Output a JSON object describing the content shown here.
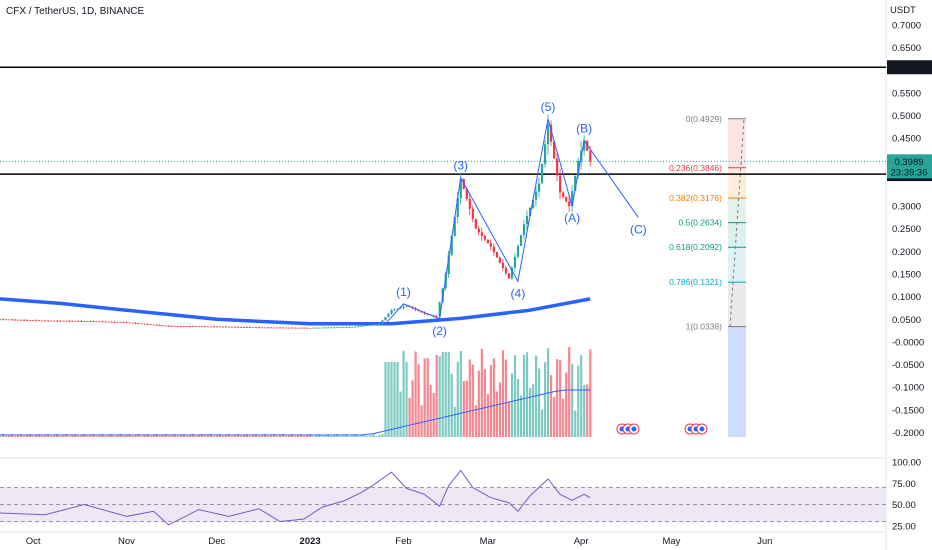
{
  "symbol_line": "CFX / TetherUS, 1D, BINANCE",
  "chart_data": {
    "type": "candlestick",
    "title": "CFX / TetherUS, 1D, BINANCE",
    "price_axis": {
      "currency_label": "USDT",
      "ticks": [
        "0.7000",
        "0.6500",
        "0.5500",
        "0.5000",
        "0.4500",
        "0.3000",
        "0.2500",
        "0.2000",
        "0.1500",
        "0.1000",
        "0.0500",
        "-0.0000",
        "-0.0500",
        "-0.1000",
        "-0.1500",
        "-0.2000"
      ],
      "ylim": [
        -0.21,
        0.73
      ]
    },
    "time_axis": {
      "labels": [
        "Oct",
        "Nov",
        "Dec",
        "2023",
        "Feb",
        "Mar",
        "Apr",
        "May",
        "Jun"
      ]
    },
    "horizontal_levels": [
      {
        "label": "0.6067",
        "value": 0.6067,
        "color": "#000000"
      },
      {
        "label": "0.3707",
        "value": 0.3707,
        "color": "#000000"
      }
    ],
    "last_price": {
      "value": 0.3989,
      "label": "0.3989",
      "countdown": "23:39:36",
      "color": "#26a69a"
    },
    "price_series": [
      {
        "date": "2022-09-20",
        "close": 0.05
      },
      {
        "date": "2022-10-05",
        "close": 0.047
      },
      {
        "date": "2022-10-20",
        "close": 0.046
      },
      {
        "date": "2022-11-01",
        "close": 0.043
      },
      {
        "date": "2022-11-15",
        "close": 0.035
      },
      {
        "date": "2022-12-01",
        "close": 0.034
      },
      {
        "date": "2022-12-15",
        "close": 0.032
      },
      {
        "date": "2023-01-01",
        "close": 0.031
      },
      {
        "date": "2023-01-15",
        "close": 0.033
      },
      {
        "date": "2023-01-24",
        "close": 0.04
      },
      {
        "date": "2023-01-28",
        "close": 0.07
      },
      {
        "date": "2023-02-02",
        "close": 0.08
      },
      {
        "date": "2023-02-08",
        "close": 0.062
      },
      {
        "date": "2023-02-12",
        "close": 0.056
      },
      {
        "date": "2023-02-15",
        "close": 0.15
      },
      {
        "date": "2023-02-20",
        "close": 0.36
      },
      {
        "date": "2023-02-25",
        "close": 0.25
      },
      {
        "date": "2023-03-02",
        "close": 0.21
      },
      {
        "date": "2023-03-08",
        "close": 0.14
      },
      {
        "date": "2023-03-13",
        "close": 0.26
      },
      {
        "date": "2023-03-18",
        "close": 0.35
      },
      {
        "date": "2023-03-21",
        "close": 0.48
      },
      {
        "date": "2023-03-25",
        "close": 0.33
      },
      {
        "date": "2023-03-28",
        "close": 0.3
      },
      {
        "date": "2023-03-31",
        "close": 0.4
      },
      {
        "date": "2023-04-02",
        "close": 0.445
      },
      {
        "date": "2023-04-04",
        "close": 0.399
      }
    ],
    "moving_average": [
      {
        "date": "2022-09-20",
        "value": 0.095
      },
      {
        "date": "2022-10-10",
        "value": 0.085
      },
      {
        "date": "2022-11-01",
        "value": 0.07
      },
      {
        "date": "2022-12-01",
        "value": 0.05
      },
      {
        "date": "2023-01-01",
        "value": 0.04
      },
      {
        "date": "2023-01-28",
        "value": 0.04
      },
      {
        "date": "2023-02-20",
        "value": 0.052
      },
      {
        "date": "2023-03-15",
        "value": 0.07
      },
      {
        "date": "2023-04-04",
        "value": 0.095
      }
    ],
    "elliott_waves": [
      {
        "label": "(1)",
        "date": "2023-02-01",
        "value": 0.084,
        "text_pos": "above"
      },
      {
        "label": "(2)",
        "date": "2023-02-13",
        "value": 0.051,
        "text_pos": "below"
      },
      {
        "label": "(3)",
        "date": "2023-02-20",
        "value": 0.363,
        "text_pos": "above"
      },
      {
        "label": "(4)",
        "date": "2023-03-11",
        "value": 0.134,
        "text_pos": "below"
      },
      {
        "label": "(5)",
        "date": "2023-03-21",
        "value": 0.4929,
        "text_pos": "above"
      },
      {
        "label": "(A)",
        "date": "2023-03-29",
        "value": 0.3,
        "text_pos": "below"
      },
      {
        "label": "(B)",
        "date": "2023-04-02",
        "value": 0.445,
        "text_pos": "above"
      },
      {
        "label": "(C)",
        "date": "2023-04-20",
        "value": 0.275,
        "text_pos": "below"
      }
    ],
    "fibonacci": {
      "levels": [
        {
          "ratio": "0",
          "value": 0.4929,
          "label": "0(0.4929)",
          "color": "#787b86",
          "fill": "#fde2e2"
        },
        {
          "ratio": "0.236",
          "value": 0.3846,
          "label": "0.236(0.3846)",
          "color": "#f23645",
          "fill": "#fde2e2"
        },
        {
          "ratio": "0.382",
          "value": 0.3176,
          "label": "0.382(0.3176)",
          "color": "#f57c00",
          "fill": "#feecd6"
        },
        {
          "ratio": "0.5",
          "value": 0.2634,
          "label": "0.5(0.2634)",
          "color": "#089981",
          "fill": "#e0f2e9"
        },
        {
          "ratio": "0.618",
          "value": 0.2092,
          "label": "0.618(0.2092)",
          "color": "#089981",
          "fill": "#d8f0ec"
        },
        {
          "ratio": "0.786",
          "value": 0.1321,
          "label": "0.786(0.1321)",
          "color": "#00acc1",
          "fill": "#d9f0f5"
        },
        {
          "ratio": "1",
          "value": 0.0338,
          "label": "1(0.0338)",
          "color": "#787b86",
          "fill": "#e8e8e8"
        }
      ],
      "extension_fill": "#cddcff"
    },
    "volume": {
      "up_color": "#26a69a",
      "down_color": "#f23645",
      "ma_color": "#2962ff"
    },
    "rsi": {
      "ticks": [
        "100.00",
        "75.00",
        "50.00",
        "25.00"
      ],
      "ylim": [
        20,
        100
      ],
      "band": [
        30,
        70
      ],
      "midline": 50,
      "line_color": "#7e57c2",
      "band_color": "#ede7f6",
      "series": [
        {
          "date": "2022-09-20",
          "value": 40
        },
        {
          "date": "2022-10-05",
          "value": 38
        },
        {
          "date": "2022-10-18",
          "value": 50
        },
        {
          "date": "2022-11-01",
          "value": 36
        },
        {
          "date": "2022-11-10",
          "value": 42
        },
        {
          "date": "2022-11-15",
          "value": 26
        },
        {
          "date": "2022-11-25",
          "value": 44
        },
        {
          "date": "2022-12-05",
          "value": 36
        },
        {
          "date": "2022-12-15",
          "value": 45
        },
        {
          "date": "2022-12-22",
          "value": 30
        },
        {
          "date": "2022-12-30",
          "value": 33
        },
        {
          "date": "2023-01-05",
          "value": 47
        },
        {
          "date": "2023-01-12",
          "value": 54
        },
        {
          "date": "2023-01-18",
          "value": 64
        },
        {
          "date": "2023-01-22",
          "value": 73
        },
        {
          "date": "2023-01-28",
          "value": 88
        },
        {
          "date": "2023-02-02",
          "value": 69
        },
        {
          "date": "2023-02-08",
          "value": 62
        },
        {
          "date": "2023-02-13",
          "value": 48
        },
        {
          "date": "2023-02-16",
          "value": 72
        },
        {
          "date": "2023-02-20",
          "value": 90
        },
        {
          "date": "2023-02-24",
          "value": 70
        },
        {
          "date": "2023-03-02",
          "value": 58
        },
        {
          "date": "2023-03-08",
          "value": 52
        },
        {
          "date": "2023-03-11",
          "value": 42
        },
        {
          "date": "2023-03-15",
          "value": 60
        },
        {
          "date": "2023-03-21",
          "value": 80
        },
        {
          "date": "2023-03-25",
          "value": 62
        },
        {
          "date": "2023-03-29",
          "value": 55
        },
        {
          "date": "2023-04-02",
          "value": 62
        },
        {
          "date": "2023-04-04",
          "value": 58
        }
      ]
    }
  }
}
